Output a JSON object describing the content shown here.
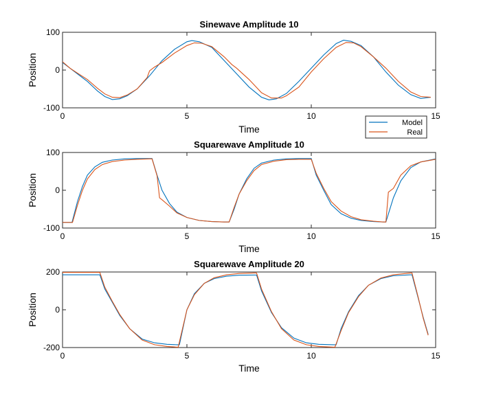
{
  "chart_data": [
    {
      "type": "line",
      "title": "Sinewave Amplitude 10",
      "xlabel": "Time",
      "ylabel": "Position",
      "xlim": [
        0,
        15
      ],
      "ylim": [
        -100,
        100
      ],
      "xticks": [
        "0",
        "5",
        "10",
        "15"
      ],
      "yticks": [
        "-100",
        "0",
        "100"
      ],
      "series": [
        {
          "name": "Model",
          "color": "#0072bd",
          "x": [
            0,
            0.3,
            0.6,
            1.0,
            1.4,
            1.7,
            2.0,
            2.3,
            2.6,
            3.0,
            3.5,
            4.0,
            4.5,
            5.0,
            5.2,
            5.5,
            6.0,
            6.5,
            7.0,
            7.5,
            8.0,
            8.3,
            8.6,
            9.0,
            9.5,
            10.0,
            10.5,
            11.0,
            11.3,
            11.6,
            12.0,
            12.5,
            13.0,
            13.5,
            14.0,
            14.4,
            14.8
          ],
          "y": [
            20,
            5,
            -10,
            -30,
            -55,
            -70,
            -78,
            -76,
            -68,
            -50,
            -15,
            25,
            55,
            75,
            78,
            75,
            60,
            25,
            -10,
            -45,
            -72,
            -79,
            -76,
            -62,
            -30,
            5,
            40,
            70,
            79,
            76,
            65,
            35,
            -5,
            -40,
            -65,
            -75,
            -72
          ]
        },
        {
          "name": "Real",
          "color": "#d95319",
          "x": [
            0,
            0.3,
            0.6,
            1.0,
            1.4,
            1.7,
            2.0,
            2.3,
            2.6,
            3.0,
            3.4,
            3.5,
            3.7,
            4.0,
            4.5,
            5.0,
            5.3,
            5.6,
            6.0,
            6.5,
            6.8,
            7.0,
            7.5,
            8.0,
            8.4,
            8.8,
            9.0,
            9.5,
            10.0,
            10.5,
            11.0,
            11.4,
            11.7,
            12.0,
            12.5,
            13.0,
            13.5,
            14.0,
            14.4,
            14.8
          ],
          "y": [
            22,
            5,
            -8,
            -25,
            -48,
            -63,
            -72,
            -73,
            -66,
            -50,
            -20,
            -2,
            8,
            20,
            45,
            65,
            72,
            71,
            62,
            35,
            15,
            5,
            -25,
            -60,
            -74,
            -74,
            -68,
            -45,
            -5,
            30,
            60,
            73,
            72,
            62,
            35,
            5,
            -30,
            -58,
            -70,
            -72
          ]
        }
      ]
    },
    {
      "type": "line",
      "title": "Squarewave Amplitude 10",
      "xlabel": "Time",
      "ylabel": "Position",
      "xlim": [
        0,
        15
      ],
      "ylim": [
        -100,
        100
      ],
      "xticks": [
        "0",
        "5",
        "10",
        "15"
      ],
      "yticks": [
        "-100",
        "0",
        "100"
      ],
      "legend": {
        "entries": [
          "Model",
          "Real"
        ],
        "placement": "top-right"
      },
      "series": [
        {
          "name": "Model",
          "color": "#0072bd",
          "x": [
            0,
            0.38,
            0.6,
            0.8,
            1.0,
            1.3,
            1.6,
            2.0,
            2.5,
            3.0,
            3.5,
            3.6,
            3.8,
            4.0,
            4.3,
            4.6,
            5.0,
            5.5,
            6.0,
            6.5,
            6.7,
            6.9,
            7.1,
            7.4,
            7.7,
            8.0,
            8.5,
            9.0,
            9.5,
            9.8,
            10.0,
            10.2,
            10.5,
            10.8,
            11.2,
            11.6,
            12.0,
            12.5,
            12.9,
            13.0,
            13.3,
            13.6,
            14.0,
            14.4,
            15.0
          ],
          "y": [
            -85,
            -85,
            -30,
            10,
            40,
            62,
            74,
            80,
            83,
            84,
            84,
            84,
            40,
            0,
            -35,
            -58,
            -72,
            -80,
            -83,
            -84,
            -84,
            -50,
            -10,
            30,
            58,
            72,
            80,
            83,
            84,
            84,
            84,
            40,
            0,
            -38,
            -62,
            -74,
            -80,
            -83,
            -84,
            -84,
            -20,
            25,
            60,
            75,
            83
          ]
        },
        {
          "name": "Real",
          "color": "#d95319",
          "x": [
            0,
            0.4,
            0.6,
            0.8,
            1.0,
            1.3,
            1.6,
            2.0,
            2.5,
            3.0,
            3.5,
            3.6,
            3.8,
            3.9,
            4.0,
            4.3,
            4.6,
            5.0,
            5.5,
            6.0,
            6.5,
            6.7,
            6.9,
            7.1,
            7.4,
            7.7,
            8.0,
            8.5,
            9.0,
            9.5,
            9.8,
            10.0,
            10.2,
            10.5,
            10.8,
            11.2,
            11.6,
            12.0,
            12.5,
            12.9,
            13.0,
            13.1,
            13.3,
            13.6,
            14.0,
            14.4,
            15.0
          ],
          "y": [
            -85,
            -85,
            -40,
            0,
            30,
            55,
            68,
            76,
            80,
            82,
            83,
            83,
            38,
            -20,
            -25,
            -42,
            -60,
            -72,
            -80,
            -83,
            -84,
            -84,
            -45,
            -10,
            25,
            52,
            68,
            77,
            81,
            82,
            82,
            82,
            45,
            5,
            -30,
            -55,
            -70,
            -78,
            -82,
            -84,
            -84,
            -5,
            5,
            40,
            65,
            75,
            82
          ]
        }
      ]
    },
    {
      "type": "line",
      "title": "Squarewave Amplitude 20",
      "xlabel": "Time",
      "ylabel": "Position",
      "xlim": [
        0,
        15
      ],
      "ylim": [
        -200,
        200
      ],
      "xticks": [
        "0",
        "5",
        "10",
        "15"
      ],
      "yticks": [
        "-200",
        "0",
        "200"
      ],
      "series": [
        {
          "name": "Model",
          "color": "#0072bd",
          "x": [
            0,
            1.4,
            1.5,
            1.7,
            2.0,
            2.3,
            2.7,
            3.2,
            3.7,
            4.2,
            4.6,
            4.7,
            5.0,
            5.3,
            5.7,
            6.1,
            6.6,
            7.1,
            7.7,
            7.8,
            8.0,
            8.4,
            8.8,
            9.3,
            9.8,
            10.3,
            10.9,
            11.0,
            11.2,
            11.5,
            11.9,
            12.3,
            12.8,
            13.3,
            14.0,
            14.05,
            14.3,
            14.5,
            14.7
          ],
          "y": [
            185,
            185,
            185,
            110,
            40,
            -30,
            -100,
            -155,
            -175,
            -183,
            -185,
            -185,
            0,
            85,
            140,
            165,
            178,
            183,
            184,
            184,
            100,
            -15,
            -95,
            -150,
            -175,
            -183,
            -185,
            -185,
            -100,
            -10,
            75,
            130,
            165,
            180,
            185,
            185,
            60,
            -40,
            -130
          ]
        },
        {
          "name": "Real",
          "color": "#d95319",
          "x": [
            0,
            1.4,
            1.5,
            1.7,
            2.0,
            2.3,
            2.7,
            3.2,
            3.7,
            4.2,
            4.6,
            4.65,
            5.0,
            5.3,
            5.7,
            6.1,
            6.6,
            7.1,
            7.7,
            7.8,
            8.0,
            8.4,
            8.8,
            9.3,
            9.8,
            10.3,
            10.9,
            10.95,
            11.2,
            11.5,
            11.9,
            12.3,
            12.8,
            13.3,
            14.0,
            14.05,
            14.3,
            14.5,
            14.7
          ],
          "y": [
            198,
            198,
            198,
            120,
            45,
            -25,
            -100,
            -160,
            -185,
            -194,
            -198,
            -198,
            0,
            80,
            140,
            170,
            185,
            192,
            195,
            195,
            110,
            -10,
            -100,
            -160,
            -185,
            -194,
            -198,
            -198,
            -110,
            -15,
            70,
            130,
            168,
            185,
            195,
            195,
            65,
            -45,
            -135
          ]
        }
      ]
    }
  ]
}
